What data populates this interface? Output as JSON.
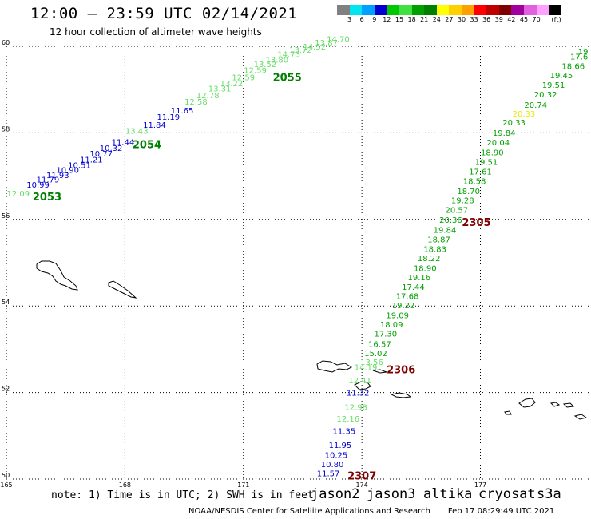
{
  "title": "12:00 – 23:59 UTC 02/14/2021",
  "subtitle": "12 hour collection of altimeter wave heights",
  "colorbar": {
    "colors": [
      "#808080",
      "#00e5ee",
      "#00a0ff",
      "#0000d0",
      "#00c800",
      "#40e040",
      "#00a000",
      "#008000",
      "#ffff00",
      "#ffd000",
      "#ffa000",
      "#ff0000",
      "#c00000",
      "#800000",
      "#a000a0",
      "#e060e0",
      "#ffa0ff",
      "#000000"
    ],
    "labels": [
      "3",
      "6",
      "9",
      "12",
      "15",
      "18",
      "21",
      "24",
      "27",
      "30",
      "33",
      "36",
      "39",
      "42",
      "45",
      "70"
    ],
    "unit": "(ft)"
  },
  "map": {
    "lat_ticks": [
      "60",
      "58",
      "56",
      "54",
      "52",
      "50"
    ],
    "lon_ticks": [
      "165",
      "168",
      "171",
      "174",
      "177"
    ],
    "lat_range": [
      50,
      60
    ],
    "lon_range": [
      165,
      179.8
    ],
    "grid": "dotted"
  },
  "tracks": [
    {
      "satellite": "jason3",
      "hour_label": "2053",
      "hour_color": "#008000",
      "points": [
        {
          "lon": 165.3,
          "lat": 56.53,
          "v": "12.09",
          "color": "#66dd66"
        }
      ]
    },
    {
      "satellite": "jason2",
      "hour_label": "2054",
      "hour_color": "#008000",
      "points": [
        {
          "lon": 165.8,
          "lat": 56.73,
          "v": "10.99",
          "color": "#0000d0"
        },
        {
          "lon": 166.05,
          "lat": 56.85,
          "v": "11.79",
          "color": "#0000d0"
        },
        {
          "lon": 166.3,
          "lat": 56.96,
          "v": "11.93",
          "color": "#0000d0"
        },
        {
          "lon": 166.55,
          "lat": 57.08,
          "v": "10.90",
          "color": "#0000d0"
        },
        {
          "lon": 166.85,
          "lat": 57.19,
          "v": "10.51",
          "color": "#0000d0"
        },
        {
          "lon": 167.15,
          "lat": 57.32,
          "v": "11.21",
          "color": "#0000d0"
        },
        {
          "lon": 167.4,
          "lat": 57.45,
          "v": "10.77",
          "color": "#0000d0"
        },
        {
          "lon": 167.65,
          "lat": 57.58,
          "v": "10.32",
          "color": "#0000d0"
        },
        {
          "lon": 167.95,
          "lat": 57.72,
          "v": "11.44",
          "color": "#0000d0"
        }
      ]
    },
    {
      "satellite": "jason2",
      "hour_label": "2055",
      "hour_color": "#008000",
      "points": [
        {
          "lon": 168.3,
          "lat": 57.98,
          "v": "13.43",
          "color": "#66dd66"
        },
        {
          "lon": 168.75,
          "lat": 58.12,
          "v": "11.84",
          "color": "#0000d0"
        },
        {
          "lon": 169.1,
          "lat": 58.3,
          "v": "11.19",
          "color": "#0000d0"
        },
        {
          "lon": 169.45,
          "lat": 58.45,
          "v": "11.65",
          "color": "#0000d0"
        },
        {
          "lon": 169.8,
          "lat": 58.65,
          "v": "12.58",
          "color": "#66dd66"
        },
        {
          "lon": 170.1,
          "lat": 58.8,
          "v": "12.78",
          "color": "#66dd66"
        },
        {
          "lon": 170.4,
          "lat": 58.96,
          "v": "13.31",
          "color": "#66dd66"
        },
        {
          "lon": 170.7,
          "lat": 59.08,
          "v": "13.22",
          "color": "#66dd66"
        },
        {
          "lon": 171.0,
          "lat": 59.22,
          "v": "12.59",
          "color": "#66dd66"
        },
        {
          "lon": 171.3,
          "lat": 59.38,
          "v": "12.59",
          "color": "#66dd66"
        },
        {
          "lon": 171.55,
          "lat": 59.52,
          "v": "13.52",
          "color": "#66dd66"
        },
        {
          "lon": 171.85,
          "lat": 59.62,
          "v": "13.80",
          "color": "#66dd66"
        },
        {
          "lon": 172.15,
          "lat": 59.75,
          "v": "14.73",
          "color": "#66dd66"
        },
        {
          "lon": 172.45,
          "lat": 59.85,
          "v": "13.72",
          "color": "#66dd66"
        },
        {
          "lon": 172.8,
          "lat": 59.93,
          "v": "14.52",
          "color": "#66dd66"
        },
        {
          "lon": 173.1,
          "lat": 60.02,
          "v": "13.87",
          "color": "#66dd66"
        },
        {
          "lon": 173.4,
          "lat": 60.1,
          "v": "14.70",
          "color": "#66dd66"
        }
      ]
    },
    {
      "satellite": "jason3",
      "hour_label": "2305",
      "hour_color": "#800000",
      "points": [
        {
          "lon": 179.6,
          "lat": 59.82,
          "v": "19",
          "color": "#00a000"
        },
        {
          "lon": 179.5,
          "lat": 59.7,
          "v": "17.6",
          "color": "#00a000"
        },
        {
          "lon": 179.35,
          "lat": 59.47,
          "v": "18.66",
          "color": "#00a000"
        },
        {
          "lon": 179.05,
          "lat": 59.26,
          "v": "19.45",
          "color": "#00a000"
        },
        {
          "lon": 178.85,
          "lat": 59.04,
          "v": "19.51",
          "color": "#00a000"
        },
        {
          "lon": 178.65,
          "lat": 58.82,
          "v": "20.32",
          "color": "#00a000"
        },
        {
          "lon": 178.4,
          "lat": 58.58,
          "v": "20.74",
          "color": "#00a000"
        },
        {
          "lon": 178.1,
          "lat": 58.38,
          "v": "20.33",
          "color": "#e8e800"
        },
        {
          "lon": 177.85,
          "lat": 58.17,
          "v": "20.33",
          "color": "#00a000"
        },
        {
          "lon": 177.6,
          "lat": 57.93,
          "v": "19.84",
          "color": "#00a000"
        },
        {
          "lon": 177.45,
          "lat": 57.71,
          "v": "20.04",
          "color": "#00a000"
        },
        {
          "lon": 177.3,
          "lat": 57.48,
          "v": "18.90",
          "color": "#00a000"
        },
        {
          "lon": 177.15,
          "lat": 57.26,
          "v": "19.51",
          "color": "#00a000"
        },
        {
          "lon": 177.0,
          "lat": 57.04,
          "v": "17.61",
          "color": "#00a000"
        },
        {
          "lon": 176.85,
          "lat": 56.82,
          "v": "18.58",
          "color": "#00a000"
        },
        {
          "lon": 176.7,
          "lat": 56.59,
          "v": "18.70",
          "color": "#00a000"
        },
        {
          "lon": 176.55,
          "lat": 56.37,
          "v": "19.28",
          "color": "#00a000"
        },
        {
          "lon": 176.4,
          "lat": 56.15,
          "v": "20.57",
          "color": "#00a000"
        },
        {
          "lon": 176.25,
          "lat": 55.92,
          "v": "20.36",
          "color": "#00a000"
        }
      ]
    },
    {
      "satellite": "jason3",
      "hour_label": "2306",
      "hour_color": "#800000",
      "points": [
        {
          "lon": 176.1,
          "lat": 55.69,
          "v": "19.84",
          "color": "#00a000"
        },
        {
          "lon": 175.95,
          "lat": 55.47,
          "v": "18.87",
          "color": "#00a000"
        },
        {
          "lon": 175.85,
          "lat": 55.25,
          "v": "18.83",
          "color": "#00a000"
        },
        {
          "lon": 175.7,
          "lat": 55.04,
          "v": "18.22",
          "color": "#00a000"
        },
        {
          "lon": 175.6,
          "lat": 54.81,
          "v": "18.90",
          "color": "#00a000"
        },
        {
          "lon": 175.45,
          "lat": 54.59,
          "v": "19.16",
          "color": "#00a000"
        },
        {
          "lon": 175.3,
          "lat": 54.37,
          "v": "17.44",
          "color": "#00a000"
        },
        {
          "lon": 175.15,
          "lat": 54.16,
          "v": "17.68",
          "color": "#00a000"
        },
        {
          "lon": 175.05,
          "lat": 53.95,
          "v": "19.22",
          "color": "#00a000"
        },
        {
          "lon": 174.9,
          "lat": 53.72,
          "v": "19.09",
          "color": "#00a000"
        },
        {
          "lon": 174.75,
          "lat": 53.51,
          "v": "18.09",
          "color": "#00a000"
        },
        {
          "lon": 174.6,
          "lat": 53.29,
          "v": "17.30",
          "color": "#00a000"
        },
        {
          "lon": 174.45,
          "lat": 53.05,
          "v": "16.57",
          "color": "#00a000"
        },
        {
          "lon": 174.35,
          "lat": 52.84,
          "v": "15.02",
          "color": "#00a000"
        },
        {
          "lon": 174.25,
          "lat": 52.64,
          "v": "13.56",
          "color": "#66dd66"
        },
        {
          "lon": 174.1,
          "lat": 52.52,
          "v": "14.19",
          "color": "#66dd66"
        }
      ]
    },
    {
      "satellite": "jason2",
      "hour_label": "2307",
      "hour_color": "#800000",
      "points": [
        {
          "lon": 173.95,
          "lat": 52.21,
          "v": "12.41",
          "color": "#66dd66"
        },
        {
          "lon": 173.9,
          "lat": 51.93,
          "v": "11.32",
          "color": "#0000d0"
        },
        {
          "lon": 173.85,
          "lat": 51.6,
          "v": "12.98",
          "color": "#66dd66"
        },
        {
          "lon": 173.65,
          "lat": 51.33,
          "v": "12.16",
          "color": "#66dd66"
        },
        {
          "lon": 173.55,
          "lat": 51.04,
          "v": "11.35",
          "color": "#0000d0"
        },
        {
          "lon": 173.45,
          "lat": 50.72,
          "v": "11.95",
          "color": "#0000d0"
        },
        {
          "lon": 173.35,
          "lat": 50.49,
          "v": "10.25",
          "color": "#0000d0"
        },
        {
          "lon": 173.25,
          "lat": 50.28,
          "v": "10.80",
          "color": "#0000d0"
        },
        {
          "lon": 173.15,
          "lat": 50.06,
          "v": "11.57",
          "color": "#0000d0"
        }
      ]
    }
  ],
  "note": "note: 1) Time is in UTC; 2) SWH is in feet",
  "satellites": [
    {
      "name": "jason2",
      "color": "#0000d0"
    },
    {
      "name": "jason3",
      "color": "#00a000"
    },
    {
      "name": "altika",
      "color": "#ff9900"
    },
    {
      "name": "cryosat",
      "color": "#d00000"
    },
    {
      "name": "s3a",
      "color": "#800000"
    }
  ],
  "credit": "NOAA/NESDIS Center for Satellite Applications and Research",
  "timestamp": "Feb 17 08:29:49 UTC 2021"
}
